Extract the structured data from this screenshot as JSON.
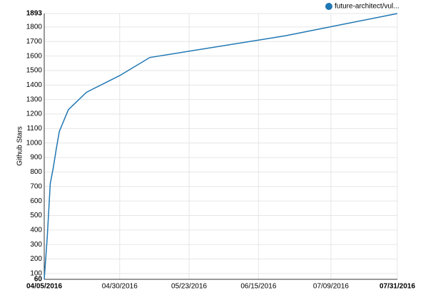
{
  "chart_data": {
    "type": "line",
    "y_label": "Github Stars",
    "series": [
      {
        "name": "future-architect/vul...",
        "color": "#1f77b4",
        "x": [
          "2016-04-05",
          "2016-04-06",
          "2016-04-07",
          "2016-04-08",
          "2016-04-09",
          "2016-04-10",
          "2016-04-13",
          "2016-04-19",
          "2016-04-30",
          "2016-05-10",
          "2016-06-24",
          "2016-07-31"
        ],
        "values": [
          60,
          350,
          720,
          830,
          960,
          1080,
          1230,
          1350,
          1465,
          1590,
          1740,
          1893
        ]
      }
    ],
    "xlim": [
      "2016-04-05",
      "2016-07-31"
    ],
    "xticks": [
      {
        "value": "2016-04-05",
        "label": "04/05/2016"
      },
      {
        "value": "2016-04-30",
        "label": "04/30/2016"
      },
      {
        "value": "2016-05-23",
        "label": "05/23/2016"
      },
      {
        "value": "2016-06-15",
        "label": "06/15/2016"
      },
      {
        "value": "2016-07-09",
        "label": "07/09/2016"
      },
      {
        "value": "2016-07-31",
        "label": "07/31/2016"
      }
    ],
    "ylim": [
      60,
      1893
    ],
    "yticks": [
      60,
      100,
      200,
      300,
      400,
      500,
      600,
      700,
      800,
      900,
      1000,
      1100,
      1200,
      1300,
      1400,
      1500,
      1600,
      1700,
      1800,
      1893
    ],
    "grid": true,
    "legend": "top-right"
  }
}
